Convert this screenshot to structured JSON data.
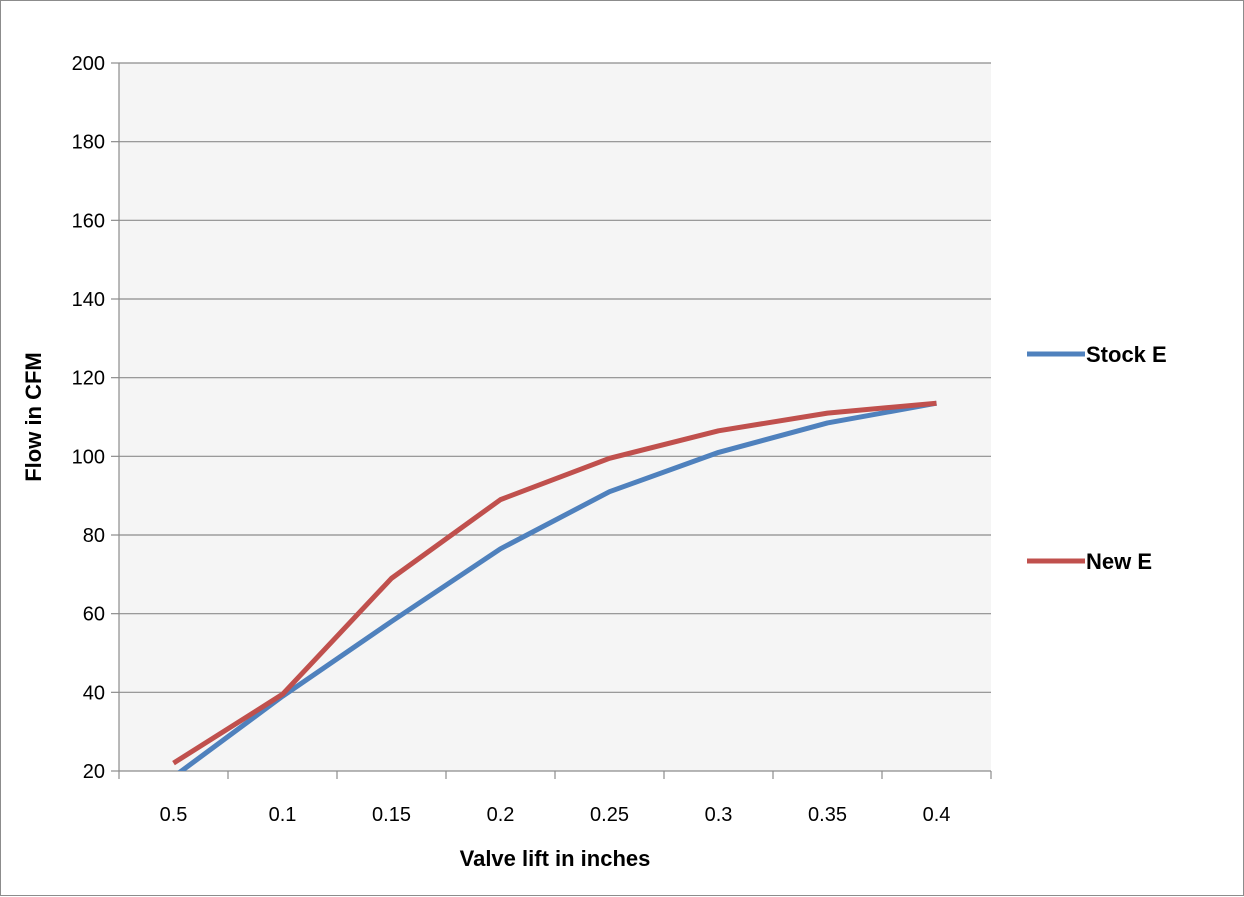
{
  "chart_data": {
    "type": "line",
    "title": "",
    "xlabel": "Valve lift in inches",
    "ylabel": "Flow in CFM",
    "categories": [
      "0.5",
      "0.1",
      "0.15",
      "0.2",
      "0.25",
      "0.3",
      "0.35",
      "0.4"
    ],
    "ylim": [
      20,
      200
    ],
    "yticks": [
      20,
      40,
      60,
      80,
      100,
      120,
      140,
      160,
      180,
      200
    ],
    "grid": true,
    "legend_position": "right",
    "series": [
      {
        "name": "Stock E",
        "color": "#4f81bd",
        "values": [
          18.5,
          39,
          58,
          76.5,
          91,
          101,
          108.5,
          113.5
        ]
      },
      {
        "name": "New E",
        "color": "#c0504d",
        "values": [
          22,
          39.5,
          69,
          89,
          99.5,
          106.5,
          111,
          113.5
        ]
      }
    ]
  }
}
